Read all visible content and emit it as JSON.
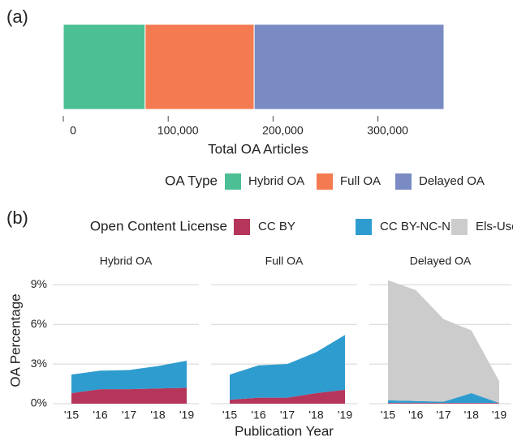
{
  "chart_data": [
    {
      "type": "bar",
      "orientation": "horizontal",
      "stacked": true,
      "panel_label": "(a)",
      "xlabel": "Total OA Articles",
      "legend_title": "OA Type",
      "legend": "bottom",
      "xlim": [
        0,
        363000
      ],
      "xticks": [
        0,
        {
          "value": 100000,
          "label": "100,000"
        },
        {
          "value": 200000,
          "label": "200,000"
        },
        {
          "value": 300000,
          "label": "300,000"
        }
      ],
      "series": [
        {
          "name": "Hybrid OA",
          "color": "#4dbf94",
          "values": [
            78000
          ]
        },
        {
          "name": "Full OA",
          "color": "#f47b51",
          "values": [
            104000
          ]
        },
        {
          "name": "Delayed OA",
          "color": "#7a8bc3",
          "values": [
            181000
          ]
        }
      ]
    },
    {
      "type": "area",
      "stacked": true,
      "panel_label": "(b)",
      "legend_title": "Open Content License",
      "legend": "top",
      "xlabel": "Publication Year",
      "ylabel": "OA Percentage",
      "categories": [
        "'15",
        "'16",
        "'17",
        "'18",
        "'19"
      ],
      "ylim": [
        0,
        9.7
      ],
      "yticks": [
        {
          "value": 0,
          "label": "0%"
        },
        {
          "value": 3,
          "label": "3%"
        },
        {
          "value": 6,
          "label": "6%"
        },
        {
          "value": 9,
          "label": "9%"
        }
      ],
      "grid": true,
      "series": [
        {
          "name": "CC BY",
          "color": "#b5365a"
        },
        {
          "name": "CC BY-NC-ND",
          "color": "#2e9ccf"
        },
        {
          "name": "Els-User",
          "color": "#cccccc"
        }
      ],
      "facets": [
        {
          "title": "Hybrid OA",
          "values": [
            [
              0.8,
              1.1,
              1.1,
              1.15,
              1.2
            ],
            [
              1.4,
              1.4,
              1.45,
              1.7,
              2.05
            ],
            [
              0,
              0,
              0,
              0,
              0
            ]
          ]
        },
        {
          "title": "Full OA",
          "values": [
            [
              0.3,
              0.45,
              0.45,
              0.8,
              1.05
            ],
            [
              1.9,
              2.45,
              2.55,
              3.1,
              4.15
            ],
            [
              0,
              0,
              0,
              0,
              0
            ]
          ]
        },
        {
          "title": "Delayed OA",
          "values": [
            [
              0.05,
              0.05,
              0.05,
              0.05,
              0.05
            ],
            [
              0.2,
              0.15,
              0.1,
              0.75,
              0
            ],
            [
              9.1,
              8.4,
              6.25,
              4.75,
              1.65
            ]
          ]
        }
      ]
    }
  ]
}
